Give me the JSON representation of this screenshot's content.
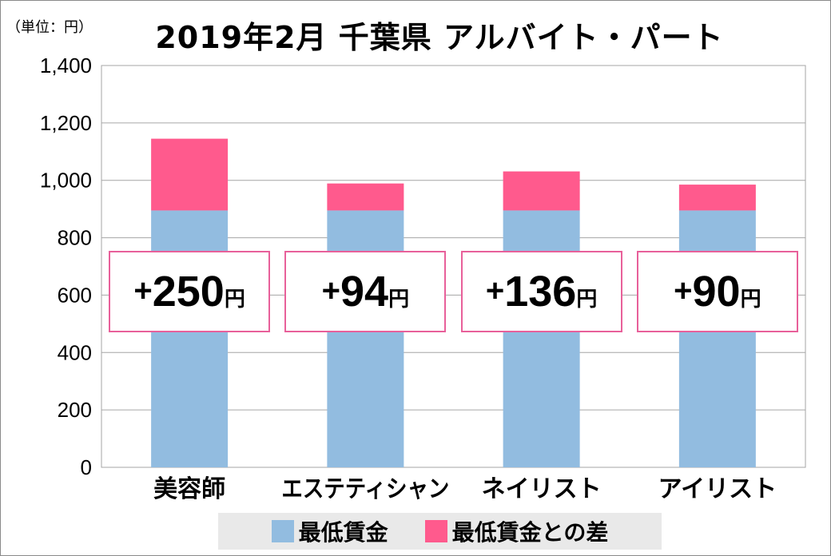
{
  "chart_data": {
    "type": "bar",
    "stacked": true,
    "title": "2019年2月 千葉県 アルバイト・パート",
    "unit_label": "（単位：円）",
    "categories": [
      "美容師",
      "エステティシャン",
      "ネイリスト",
      "アイリスト"
    ],
    "series": [
      {
        "name": "最低賃金",
        "color": "#92bce0",
        "values": [
          895,
          895,
          895,
          895
        ]
      },
      {
        "name": "最低賃金との差",
        "color": "#ff5a8d",
        "values": [
          250,
          94,
          136,
          90
        ]
      }
    ],
    "ylim": [
      0,
      1400
    ],
    "yticks": [
      "0",
      "200",
      "400",
      "600",
      "800",
      "1,000",
      "1,200",
      "1,400"
    ],
    "ytick_values": [
      0,
      200,
      400,
      600,
      800,
      1000,
      1200,
      1400
    ],
    "grid": true,
    "legend_position": "bottom",
    "annotations": [
      {
        "sign": "+",
        "value": "250",
        "unit": "円"
      },
      {
        "sign": "+",
        "value": "94",
        "unit": "円"
      },
      {
        "sign": "+",
        "value": "136",
        "unit": "円"
      },
      {
        "sign": "+",
        "value": "90",
        "unit": "円"
      }
    ]
  }
}
